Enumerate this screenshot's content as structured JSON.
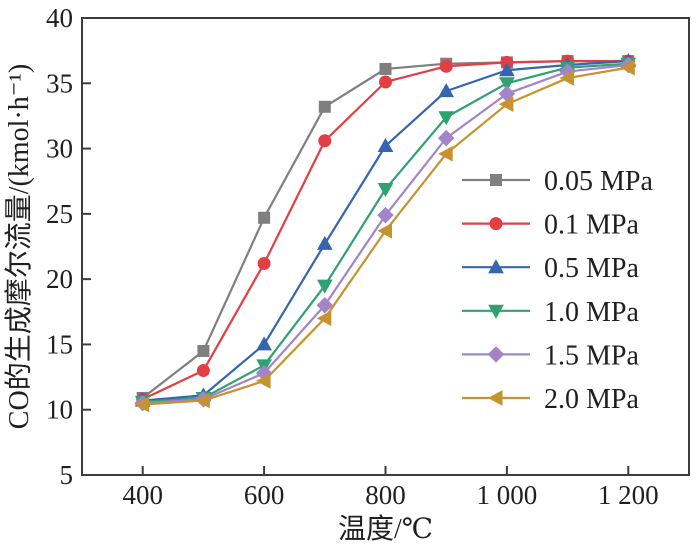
{
  "chart_data": {
    "type": "line",
    "title": "",
    "xlabel": "温度/℃",
    "ylabel": "CO的生成摩尔流量/(kmol·h⁻¹)",
    "xlim": [
      300,
      1300
    ],
    "ylim": [
      5,
      40
    ],
    "x_ticks": [
      400,
      600,
      800,
      1000,
      1200
    ],
    "x_tick_labels": [
      "400",
      "600",
      "800",
      "1 000",
      "1 200"
    ],
    "y_ticks": [
      5,
      10,
      15,
      20,
      25,
      30,
      35,
      40
    ],
    "y_tick_labels": [
      "5",
      "10",
      "15",
      "20",
      "25",
      "30",
      "35",
      "40"
    ],
    "grid": false,
    "legend_position": "inside-right-middle",
    "x": [
      400,
      500,
      600,
      700,
      800,
      900,
      1000,
      1100,
      1200
    ],
    "series": [
      {
        "name": "0.05 MPa",
        "color": "#7f7f7f",
        "marker": "square",
        "values": [
          10.9,
          14.5,
          24.7,
          33.2,
          36.1,
          36.5,
          36.6,
          36.7,
          36.7
        ]
      },
      {
        "name": "0.1 MPa",
        "color": "#e23f44",
        "marker": "circle",
        "values": [
          10.8,
          13.0,
          21.2,
          30.6,
          35.1,
          36.3,
          36.6,
          36.7,
          36.7
        ]
      },
      {
        "name": "0.5 MPa",
        "color": "#3565af",
        "marker": "triangle-up",
        "values": [
          10.7,
          11.1,
          15.0,
          22.7,
          30.2,
          34.4,
          36.0,
          36.4,
          36.7
        ]
      },
      {
        "name": "1.0 MPa",
        "color": "#2fa172",
        "marker": "triangle-down",
        "values": [
          10.6,
          10.9,
          13.4,
          19.5,
          26.9,
          32.4,
          35.0,
          36.2,
          36.5
        ]
      },
      {
        "name": "1.5 MPa",
        "color": "#a384c9",
        "marker": "diamond",
        "values": [
          10.5,
          10.8,
          12.8,
          18.0,
          24.9,
          30.8,
          34.2,
          35.9,
          36.4
        ]
      },
      {
        "name": "2.0 MPa",
        "color": "#c6932e",
        "marker": "triangle-left",
        "values": [
          10.4,
          10.7,
          12.2,
          17.0,
          23.7,
          29.6,
          33.4,
          35.4,
          36.2
        ]
      }
    ],
    "axis_color": "#3c3c3c",
    "text_color": "#1f1f1f"
  }
}
